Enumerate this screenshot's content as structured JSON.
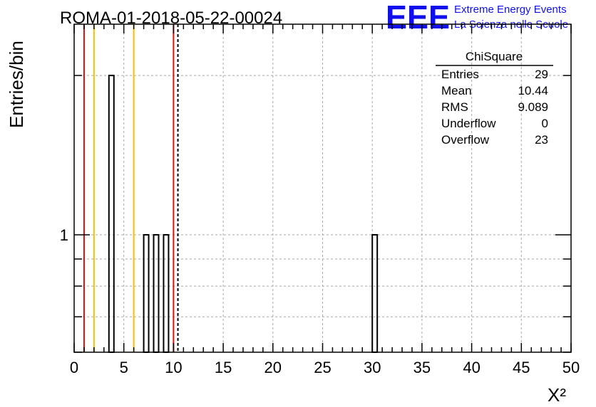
{
  "title": "ROMA-01-2018-05-22-00024",
  "logo": {
    "mark": "EEE",
    "line1": "Extreme Energy Events",
    "line2": "La Scienza nelle Scuole",
    "color": "#1010ee"
  },
  "chart_data": {
    "type": "bar",
    "title": "ROMA-01-2018-05-22-00024",
    "xlabel": "X²",
    "ylabel": "Entries/bin",
    "xlim": [
      0,
      50
    ],
    "ylim": [
      0.6,
      2.5
    ],
    "ylog": true,
    "grid": true,
    "x_ticks": [
      0,
      5,
      10,
      15,
      20,
      25,
      30,
      35,
      40,
      45,
      50
    ],
    "y_tick_labels": [
      {
        "value": 1,
        "label": "1"
      }
    ],
    "bin_width": 0.5,
    "bins": [
      {
        "x": 3.75,
        "count": 2
      },
      {
        "x": 7.25,
        "count": 1
      },
      {
        "x": 8.25,
        "count": 1
      },
      {
        "x": 9.25,
        "count": 1
      },
      {
        "x": 30.25,
        "count": 1
      }
    ],
    "vertical_lines": [
      {
        "x": 1,
        "color": "#dd1111",
        "style": "solid"
      },
      {
        "x": 2,
        "color": "#f2c200",
        "style": "solid"
      },
      {
        "x": 6,
        "color": "#f2c200",
        "style": "solid"
      },
      {
        "x": 10,
        "color": "#dd1111",
        "style": "solid"
      },
      {
        "x": 10.44,
        "color": "#000000",
        "style": "dashed"
      }
    ],
    "stats_box": {
      "title": "ChiSquare",
      "rows": [
        {
          "label": "Entries",
          "value": "29"
        },
        {
          "label": "Mean",
          "value": "10.44"
        },
        {
          "label": "RMS",
          "value": "9.089"
        },
        {
          "label": "Underflow",
          "value": "0"
        },
        {
          "label": "Overflow",
          "value": "23"
        }
      ]
    }
  }
}
